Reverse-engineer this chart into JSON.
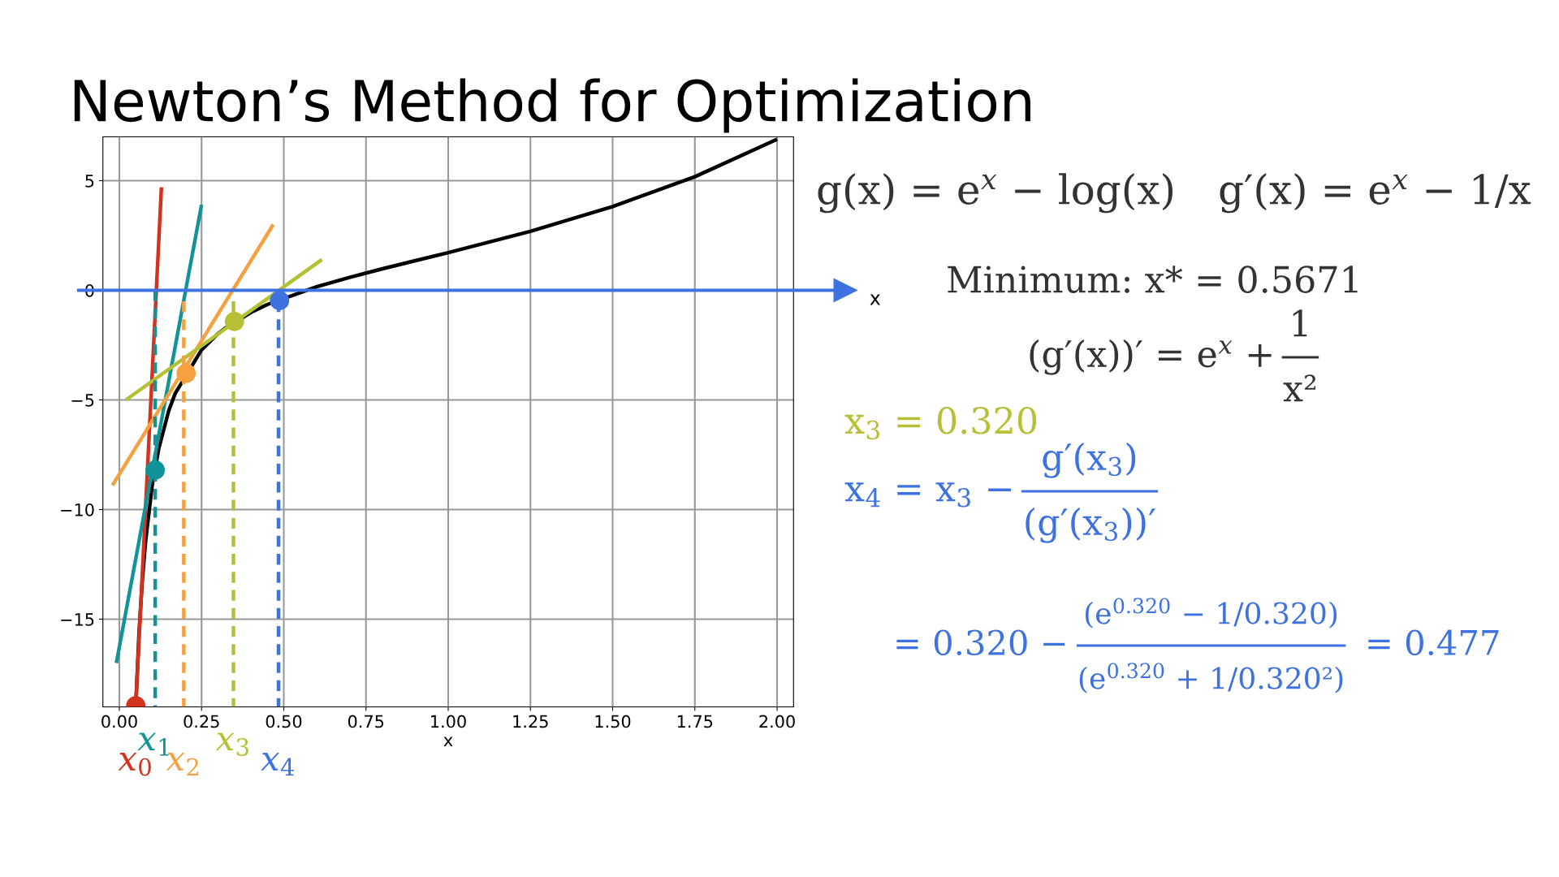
{
  "chart_data": {
    "type": "line",
    "title": "Newton’s Method for Optimization",
    "xlabel": "x",
    "xlim": [
      -0.05,
      2.05
    ],
    "ylim": [
      -19,
      7
    ],
    "xticks": [
      {
        "value": 0,
        "label": "0.00"
      },
      {
        "value": 0.25,
        "label": "0.25"
      },
      {
        "value": 0.5,
        "label": "0.50"
      },
      {
        "value": 0.75,
        "label": "0.75"
      },
      {
        "value": 1,
        "label": "1.00"
      },
      {
        "value": 1.25,
        "label": "1.25"
      },
      {
        "value": 1.5,
        "label": "1.50"
      },
      {
        "value": 1.75,
        "label": "1.75"
      },
      {
        "value": 2,
        "label": "2.00"
      }
    ],
    "yticks": [
      {
        "value": -15,
        "label": "−15"
      },
      {
        "value": -10,
        "label": "−10"
      },
      {
        "value": -5,
        "label": "−5"
      },
      0,
      5
    ],
    "grid": true,
    "ref_lines": [
      {
        "axis": "y",
        "value": 0,
        "label": "x",
        "color": "#3d72e0"
      }
    ],
    "series": [
      {
        "color": "#000000",
        "x": [
          0.05,
          0.06,
          0.07,
          0.08,
          0.1,
          0.12,
          0.15,
          0.17,
          0.25,
          0.3,
          0.32,
          0.4,
          0.45,
          0.6,
          0.7,
          0.8,
          1.0,
          1.25,
          1.5,
          1.75,
          2.0
        ],
        "values": [
          -18.95,
          -15.6,
          -13.21,
          -11.42,
          -8.89,
          -7.21,
          -5.5,
          -4.7,
          -2.72,
          -1.98,
          -1.75,
          -1.01,
          -0.65,
          0.16,
          0.59,
          0.98,
          1.72,
          2.69,
          3.82,
          5.18,
          6.89
        ]
      },
      {
        "color": "#d2321e",
        "x": [
          0.05,
          0.128
        ],
        "values": [
          -18.95,
          4.7
        ]
      },
      {
        "color": "#12939a",
        "x": [
          -0.009,
          0.25
        ],
        "values": [
          -17.0,
          3.9
        ]
      },
      {
        "color": "#f5a142",
        "x": [
          -0.021,
          0.468
        ],
        "values": [
          -8.9,
          3.0
        ]
      },
      {
        "color": "#b5c034",
        "x": [
          0.02,
          0.616
        ],
        "values": [
          -5.0,
          1.4
        ]
      },
      {
        "line_style": "dashed",
        "name": "x$_{1}$",
        "color": "#12939a",
        "x": [
          0.109,
          0.109
        ],
        "values": [
          0,
          -19
        ]
      },
      {
        "line_style": "dashed",
        "name": "x$_{2}$",
        "color": "#f5a142",
        "x": [
          0.196,
          0.196
        ],
        "values": [
          -0.5,
          -19
        ]
      },
      {
        "line_style": "dashed",
        "name": "x$_{3}$",
        "color": "#b5c034",
        "x": [
          0.347,
          0.347
        ],
        "values": [
          -0.5,
          -19
        ]
      },
      {
        "line_style": "dashed",
        "name": "x$_{4}$",
        "color": "#3d72e0",
        "x": [
          0.484,
          0.484
        ],
        "values": [
          -0.5,
          -19
        ]
      },
      {
        "type": "scatter",
        "marker": "circle",
        "name": "x$_{0}$",
        "color": "#d2321e",
        "x": [
          0.05
        ],
        "values": [
          -18.95
        ]
      },
      {
        "type": "scatter",
        "marker": "circle",
        "color": "#12939a",
        "x": [
          0.109
        ],
        "values": [
          -8.2
        ]
      },
      {
        "type": "scatter",
        "marker": "circle",
        "color": "#f5a142",
        "x": [
          0.203
        ],
        "values": [
          -3.78
        ]
      },
      {
        "type": "scatter",
        "marker": "circle",
        "color": "#b5c034",
        "x": [
          0.35
        ],
        "values": [
          -1.42
        ]
      },
      {
        "type": "scatter",
        "marker": "circle",
        "color": "#3d72e0",
        "x": [
          0.487
        ],
        "values": [
          -0.47
        ]
      }
    ],
    "annotations": [
      "g(x) = e$^{x}$ − log(x)",
      "g′(x) = e$^{x}$ − 1/x",
      "Minimum: x* = 0.5671",
      "(g′(x))′ = e$^{x}$ +",
      "1",
      "x²",
      "x$_{3}$ = 0.320",
      "x$_{4}$ = x$_{3}$ −",
      "g′(x$_{3}$)",
      "(g′(x$_{3}$))′",
      "= 0.320 −",
      "(e$^{0.320}$ − 1/0.320)",
      "(e$^{0.320}$ + 1/0.320²)",
      "= 0.477"
    ]
  }
}
